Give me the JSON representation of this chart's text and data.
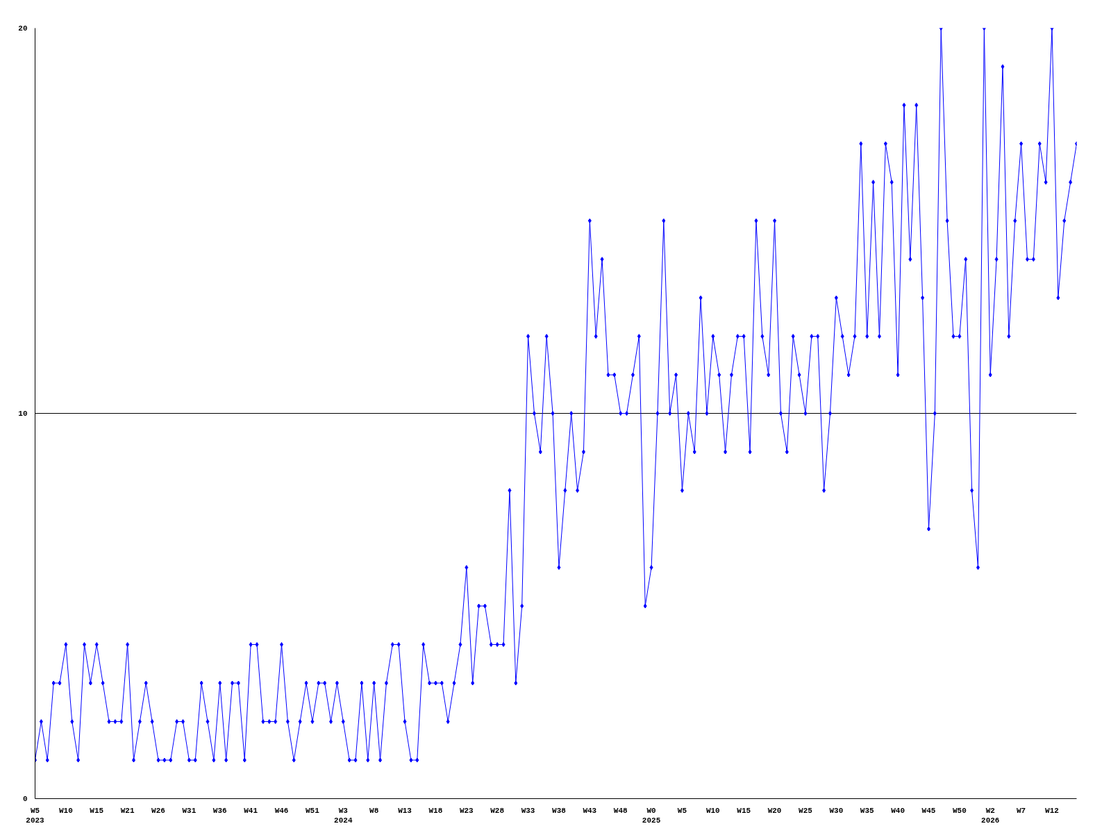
{
  "chart_data": {
    "type": "line",
    "categories": [
      "W5\n2023",
      null,
      null,
      null,
      null,
      "W10",
      null,
      null,
      null,
      null,
      "W15",
      null,
      null,
      null,
      null,
      "W21",
      null,
      null,
      null,
      null,
      "W26",
      null,
      null,
      null,
      null,
      "W31",
      null,
      null,
      null,
      null,
      "W36",
      null,
      null,
      null,
      null,
      "W41",
      null,
      null,
      null,
      null,
      "W46",
      null,
      null,
      null,
      null,
      "W51",
      null,
      null,
      null,
      null,
      "W3\n2024",
      null,
      null,
      null,
      null,
      "W8",
      null,
      null,
      null,
      null,
      "W13",
      null,
      null,
      null,
      null,
      "W18",
      null,
      null,
      null,
      null,
      "W23",
      null,
      null,
      null,
      null,
      "W28",
      null,
      null,
      null,
      null,
      "W33",
      null,
      null,
      null,
      null,
      "W38",
      null,
      null,
      null,
      null,
      "W43",
      null,
      null,
      null,
      null,
      "W48",
      null,
      null,
      null,
      null,
      "W0\n2025",
      null,
      null,
      null,
      null,
      "W5",
      null,
      null,
      null,
      null,
      "W10",
      null,
      null,
      null,
      null,
      "W15",
      null,
      null,
      null,
      null,
      "W20",
      null,
      null,
      null,
      null,
      "W25",
      null,
      null,
      null,
      null,
      "W30",
      null,
      null,
      null,
      null,
      "W35",
      null,
      null,
      null,
      null,
      "W40",
      null,
      null,
      null,
      null,
      "W45",
      null,
      null,
      null,
      null,
      "W50",
      null,
      null,
      null,
      null,
      "W2\n2026",
      null,
      null,
      null,
      null,
      "W7",
      null,
      null,
      null,
      null,
      "W12",
      null,
      null,
      null,
      null
    ],
    "series": [
      {
        "color": "#0000ff",
        "values": [
          1,
          2,
          1,
          3,
          3,
          4,
          2,
          1,
          4,
          3,
          4,
          3,
          2,
          2,
          2,
          4,
          1,
          2,
          3,
          2,
          1,
          1,
          1,
          2,
          2,
          1,
          1,
          3,
          2,
          1,
          3,
          1,
          3,
          3,
          1,
          4,
          4,
          2,
          2,
          2,
          4,
          2,
          1,
          2,
          3,
          2,
          3,
          3,
          2,
          3,
          2,
          1,
          1,
          3,
          1,
          3,
          1,
          3,
          4,
          4,
          2,
          1,
          1,
          4,
          3,
          3,
          3,
          2,
          3,
          4,
          6,
          3,
          5,
          5,
          4,
          4,
          4,
          8,
          3,
          5,
          12,
          10,
          9,
          12,
          10,
          6,
          8,
          10,
          8,
          9,
          15,
          12,
          14,
          11,
          11,
          10,
          10,
          11,
          12,
          5,
          6,
          10,
          15,
          10,
          11,
          8,
          10,
          9,
          13,
          10,
          12,
          11,
          9,
          11,
          12,
          12,
          9,
          15,
          12,
          11,
          15,
          10,
          9,
          12,
          11,
          10,
          12,
          12,
          8,
          10,
          13,
          12,
          11,
          12,
          17,
          12,
          16,
          12,
          17,
          16,
          11,
          18,
          14,
          18,
          13,
          7,
          10,
          20,
          15,
          12,
          12,
          14,
          8,
          6,
          20,
          11,
          14,
          19,
          12,
          15,
          17,
          14,
          14,
          17,
          16,
          20,
          13,
          15,
          16,
          17
        ]
      }
    ],
    "ylim": [
      0,
      20
    ],
    "yticks": [
      0,
      10,
      20
    ],
    "grid": "y",
    "marker": "diamond",
    "line_style": "solid"
  }
}
